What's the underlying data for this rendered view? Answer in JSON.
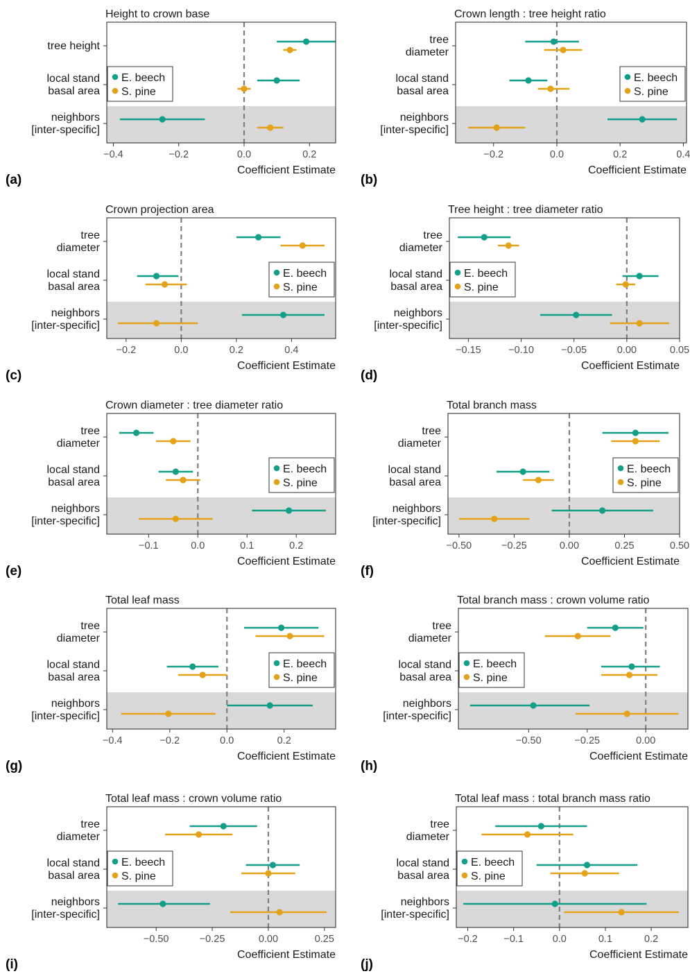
{
  "colors": {
    "beech": "#139E8A",
    "pine": "#E3A21A",
    "shade": "#d9d9d9",
    "zero_line": "#7f7f7f",
    "axis": "#333333"
  },
  "legend": {
    "beech": "E. beech",
    "pine": "S. pine"
  },
  "x_axis_label": "Coefficient Estimate",
  "chart_data": [
    {
      "label": "(a)",
      "title": "Height to crown base",
      "type": "forest",
      "rows": [
        [
          "tree height"
        ],
        [
          "local stand",
          "basal area"
        ],
        [
          "neighbors",
          "[inter-specific]"
        ]
      ],
      "xlim": [
        -0.42,
        0.28
      ],
      "ticks": [
        -0.4,
        -0.2,
        0.0,
        0.2
      ],
      "tick_labels": [
        "−0.4",
        "−0.2",
        "0.0",
        "0.2"
      ],
      "legend_pos": "middle-left",
      "series": [
        {
          "name": "E. beech",
          "est": [
            0.19,
            0.1,
            -0.25
          ],
          "lo": [
            0.1,
            0.04,
            -0.38
          ],
          "hi": [
            0.28,
            0.17,
            -0.12
          ]
        },
        {
          "name": "S. pine",
          "est": [
            0.14,
            0.0,
            0.08
          ],
          "lo": [
            0.12,
            -0.02,
            0.04
          ],
          "hi": [
            0.16,
            0.02,
            0.12
          ]
        }
      ]
    },
    {
      "label": "(b)",
      "title": "Crown length : tree height ratio",
      "type": "forest",
      "rows": [
        [
          "tree",
          "diameter"
        ],
        [
          "local stand",
          "basal area"
        ],
        [
          "neighbors",
          "[inter-specific]"
        ]
      ],
      "xlim": [
        -0.32,
        0.41
      ],
      "ticks": [
        -0.2,
        0.0,
        0.2,
        0.4
      ],
      "tick_labels": [
        "−0.2",
        "0.0",
        "0.2",
        "0.4"
      ],
      "legend_pos": "middle-right",
      "series": [
        {
          "name": "E. beech",
          "est": [
            -0.01,
            -0.09,
            0.27
          ],
          "lo": [
            -0.1,
            -0.15,
            0.16
          ],
          "hi": [
            0.07,
            -0.03,
            0.38
          ]
        },
        {
          "name": "S. pine",
          "est": [
            0.02,
            -0.02,
            -0.19
          ],
          "lo": [
            -0.04,
            -0.06,
            -0.28
          ],
          "hi": [
            0.08,
            0.04,
            -0.1
          ]
        }
      ]
    },
    {
      "label": "(c)",
      "title": "Crown projection area",
      "type": "forest",
      "rows": [
        [
          "tree",
          "diameter"
        ],
        [
          "local stand",
          "basal area"
        ],
        [
          "neighbors",
          "[inter-specific]"
        ]
      ],
      "xlim": [
        -0.27,
        0.56
      ],
      "ticks": [
        -0.2,
        0.0,
        0.2,
        0.4
      ],
      "tick_labels": [
        "−0.2",
        "0.0",
        "0.2",
        "0.4"
      ],
      "legend_pos": "middle-right",
      "series": [
        {
          "name": "E. beech",
          "est": [
            0.28,
            -0.09,
            0.37
          ],
          "lo": [
            0.2,
            -0.16,
            0.22
          ],
          "hi": [
            0.36,
            -0.01,
            0.52
          ]
        },
        {
          "name": "S. pine",
          "est": [
            0.44,
            -0.06,
            -0.09
          ],
          "lo": [
            0.36,
            -0.13,
            -0.23
          ],
          "hi": [
            0.52,
            0.02,
            0.06
          ]
        }
      ]
    },
    {
      "label": "(d)",
      "title": "Tree height : tree diameter ratio",
      "type": "forest",
      "rows": [
        [
          "tree",
          "diameter"
        ],
        [
          "local stand",
          "basal area"
        ],
        [
          "neighbors",
          "[inter-specific]"
        ]
      ],
      "xlim": [
        -0.168,
        0.05
      ],
      "ticks": [
        -0.15,
        -0.1,
        -0.05,
        0.0,
        0.05
      ],
      "tick_labels": [
        "−0.15",
        "−0.10",
        "−0.05",
        "0.00",
        "0.05"
      ],
      "legend_pos": "middle-left",
      "series": [
        {
          "name": "E. beech",
          "est": [
            -0.135,
            0.012,
            -0.048
          ],
          "lo": [
            -0.16,
            -0.004,
            -0.082
          ],
          "hi": [
            -0.11,
            0.03,
            -0.014
          ]
        },
        {
          "name": "S. pine",
          "est": [
            -0.112,
            -0.001,
            0.012
          ],
          "lo": [
            -0.122,
            -0.01,
            -0.016
          ],
          "hi": [
            -0.102,
            0.008,
            0.04
          ]
        }
      ]
    },
    {
      "label": "(e)",
      "title": "Crown diameter : tree diameter ratio",
      "type": "forest",
      "rows": [
        [
          "tree",
          "diameter"
        ],
        [
          "local stand",
          "basal area"
        ],
        [
          "neighbors",
          "[inter-specific]"
        ]
      ],
      "xlim": [
        -0.185,
        0.28
      ],
      "ticks": [
        -0.1,
        0.0,
        0.1,
        0.2
      ],
      "tick_labels": [
        "−0.1",
        "0.0",
        "0.1",
        "0.2"
      ],
      "legend_pos": "middle-right",
      "series": [
        {
          "name": "E. beech",
          "est": [
            -0.125,
            -0.045,
            0.185
          ],
          "lo": [
            -0.16,
            -0.08,
            0.11
          ],
          "hi": [
            -0.09,
            -0.01,
            0.26
          ]
        },
        {
          "name": "S. pine",
          "est": [
            -0.05,
            -0.03,
            -0.045
          ],
          "lo": [
            -0.085,
            -0.065,
            -0.12
          ],
          "hi": [
            -0.015,
            0.005,
            0.03
          ]
        }
      ]
    },
    {
      "label": "(f)",
      "title": "Total branch mass",
      "type": "forest",
      "rows": [
        [
          "tree",
          "diameter"
        ],
        [
          "local stand",
          "basal area"
        ],
        [
          "neighbors",
          "[inter-specific]"
        ]
      ],
      "xlim": [
        -0.55,
        0.5
      ],
      "ticks": [
        -0.5,
        -0.25,
        0.0,
        0.25,
        0.5
      ],
      "tick_labels": [
        "−0.50",
        "−0.25",
        "0.00",
        "0.25",
        "0.50"
      ],
      "legend_pos": "middle-right",
      "series": [
        {
          "name": "E. beech",
          "est": [
            0.3,
            -0.21,
            0.15
          ],
          "lo": [
            0.15,
            -0.33,
            -0.08
          ],
          "hi": [
            0.45,
            -0.09,
            0.38
          ]
        },
        {
          "name": "S. pine",
          "est": [
            0.3,
            -0.14,
            -0.34
          ],
          "lo": [
            0.19,
            -0.21,
            -0.5
          ],
          "hi": [
            0.41,
            -0.07,
            -0.18
          ]
        }
      ]
    },
    {
      "label": "(g)",
      "title": "Total leaf mass",
      "type": "forest",
      "rows": [
        [
          "tree",
          "diameter"
        ],
        [
          "local stand",
          "basal area"
        ],
        [
          "neighbors",
          "[inter-specific]"
        ]
      ],
      "xlim": [
        -0.42,
        0.38
      ],
      "ticks": [
        -0.4,
        -0.2,
        0.0,
        0.2
      ],
      "tick_labels": [
        "−0.4",
        "−0.2",
        "0.0",
        "0.2"
      ],
      "legend_pos": "middle-right",
      "series": [
        {
          "name": "E. beech",
          "est": [
            0.19,
            -0.12,
            0.15
          ],
          "lo": [
            0.06,
            -0.21,
            0.0
          ],
          "hi": [
            0.32,
            -0.03,
            0.3
          ]
        },
        {
          "name": "S. pine",
          "est": [
            0.22,
            -0.085,
            -0.205
          ],
          "lo": [
            0.1,
            -0.17,
            -0.37
          ],
          "hi": [
            0.34,
            0.0,
            -0.04
          ]
        }
      ]
    },
    {
      "label": "(h)",
      "title": "Total branch mass : crown volume ratio",
      "type": "forest",
      "rows": [
        [
          "tree",
          "diameter"
        ],
        [
          "local stand",
          "basal area"
        ],
        [
          "neighbors",
          "[inter-specific]"
        ]
      ],
      "xlim": [
        -0.8,
        0.18
      ],
      "ticks": [
        -0.5,
        -0.25,
        0.0
      ],
      "tick_labels": [
        "−0.50",
        "−0.25",
        "0.00"
      ],
      "legend_pos": "middle-left",
      "series": [
        {
          "name": "E. beech",
          "est": [
            -0.13,
            -0.06,
            -0.48
          ],
          "lo": [
            -0.25,
            -0.19,
            -0.75
          ],
          "hi": [
            -0.01,
            0.06,
            -0.24
          ]
        },
        {
          "name": "S. pine",
          "est": [
            -0.29,
            -0.07,
            -0.08
          ],
          "lo": [
            -0.43,
            -0.19,
            -0.3
          ],
          "hi": [
            -0.15,
            0.05,
            0.14
          ]
        }
      ]
    },
    {
      "label": "(i)",
      "title": "Total leaf mass : crown volume ratio",
      "type": "forest",
      "rows": [
        [
          "tree",
          "diameter"
        ],
        [
          "local stand",
          "basal area"
        ],
        [
          "neighbors",
          "[inter-specific]"
        ]
      ],
      "xlim": [
        -0.72,
        0.3
      ],
      "ticks": [
        -0.5,
        -0.25,
        0.0,
        0.25
      ],
      "tick_labels": [
        "−0.50",
        "−0.25",
        "0.00",
        "0.25"
      ],
      "legend_pos": "middle-left",
      "series": [
        {
          "name": "E. beech",
          "est": [
            -0.2,
            0.02,
            -0.47
          ],
          "lo": [
            -0.35,
            -0.1,
            -0.67
          ],
          "hi": [
            -0.05,
            0.14,
            -0.26
          ]
        },
        {
          "name": "S. pine",
          "est": [
            -0.31,
            0.0,
            0.05
          ],
          "lo": [
            -0.46,
            -0.12,
            -0.17
          ],
          "hi": [
            -0.16,
            0.12,
            0.26
          ]
        }
      ]
    },
    {
      "label": "(j)",
      "title": "Total leaf mass : total branch mass ratio",
      "type": "forest",
      "rows": [
        [
          "tree",
          "diameter"
        ],
        [
          "local stand",
          "basal area"
        ],
        [
          "neighbors",
          "[inter-specific]"
        ]
      ],
      "xlim": [
        -0.225,
        0.28
      ],
      "ticks": [
        -0.2,
        -0.1,
        0.0,
        0.1,
        0.2
      ],
      "tick_labels": [
        "−0.2",
        "−0.1",
        "0.0",
        "0.1",
        "0.2"
      ],
      "legend_pos": "middle-left",
      "series": [
        {
          "name": "E. beech",
          "est": [
            -0.04,
            0.06,
            -0.01
          ],
          "lo": [
            -0.14,
            -0.05,
            -0.21
          ],
          "hi": [
            0.06,
            0.17,
            0.19
          ]
        },
        {
          "name": "S. pine",
          "est": [
            -0.07,
            0.055,
            0.135
          ],
          "lo": [
            -0.17,
            -0.02,
            0.01
          ],
          "hi": [
            0.03,
            0.13,
            0.26
          ]
        }
      ]
    }
  ]
}
